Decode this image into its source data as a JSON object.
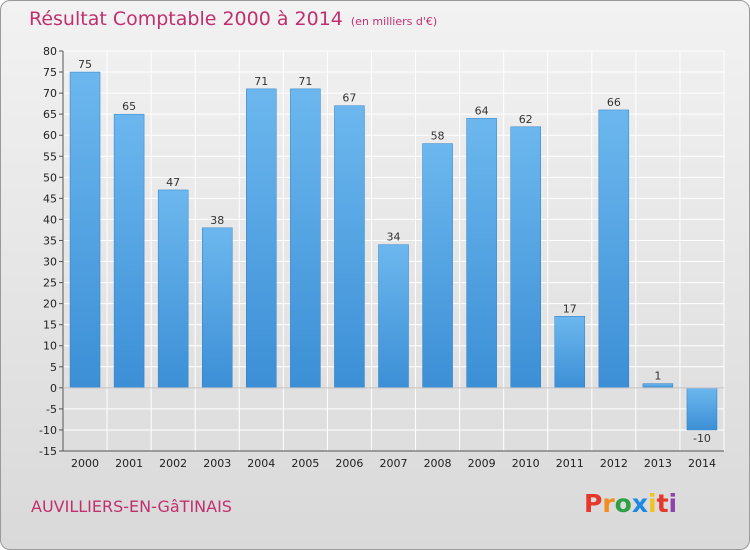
{
  "chart_data": {
    "type": "bar",
    "title": "Résultat Comptable 2000 à 2014",
    "subtitle": "(en milliers d'€)",
    "categories": [
      "2000",
      "2001",
      "2002",
      "2003",
      "2004",
      "2005",
      "2006",
      "2007",
      "2008",
      "2009",
      "2010",
      "2011",
      "2012",
      "2013",
      "2014"
    ],
    "values": [
      75,
      65,
      47,
      38,
      71,
      71,
      67,
      34,
      58,
      64,
      62,
      17,
      66,
      1,
      -10
    ],
    "data_labels": [
      "75",
      "65",
      "47",
      "38",
      "71",
      "71",
      "67",
      "34",
      "58",
      "64",
      "62",
      "17",
      "66",
      "1",
      "-10"
    ],
    "ylim": [
      -15,
      80
    ],
    "yticks": [
      80,
      75,
      70,
      65,
      60,
      55,
      50,
      45,
      40,
      35,
      30,
      25,
      20,
      15,
      10,
      5,
      0,
      -5,
      -10,
      -15
    ],
    "ytick_labels": [
      "80",
      "75",
      "70",
      "65",
      "60",
      "55",
      "50",
      "45",
      "40",
      "35",
      "30",
      "25",
      "20",
      "15",
      "10",
      "5",
      "0",
      "-5",
      "-10",
      "-15"
    ],
    "xlabel": "",
    "ylabel": "",
    "grid": true,
    "bar_color": "#3c8fd6",
    "bar_color_light": "#6cb7ee"
  },
  "footer": {
    "commune": "AUVILLIERS-EN-GâTINAIS",
    "logo_letters": [
      "P",
      "r",
      "o",
      "x",
      "i",
      "t",
      "i"
    ],
    "logo_colors": [
      "#e5372a",
      "#f28c1e",
      "#2ea043",
      "#1e88e5",
      "#f2c21e",
      "#e5372a",
      "#8e44ad"
    ]
  },
  "colors": {
    "title": "#c0306e",
    "grid": "#ffffff",
    "axis": "#555555"
  }
}
